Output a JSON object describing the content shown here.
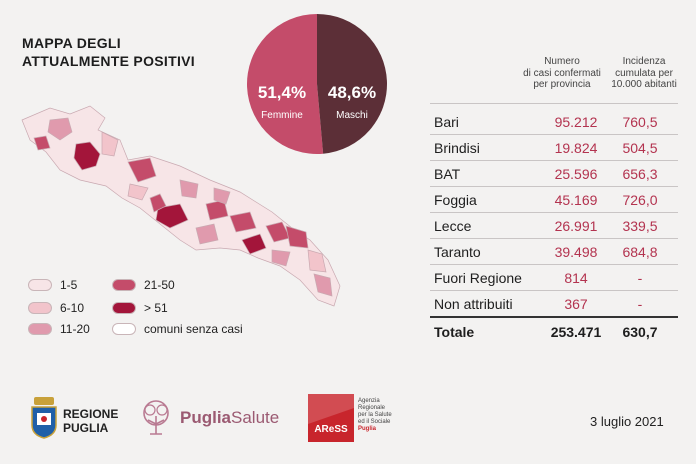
{
  "title": {
    "line1": "MAPPA DEGLI",
    "line2": "ATTUALMENTE POSITIVI"
  },
  "gender": {
    "female_pct": "51,4%",
    "female_label": "Femmine",
    "female_value": 51.4,
    "male_pct": "48,6%",
    "male_label": "Maschi",
    "male_value": 48.6,
    "female_color": "#c44c6a",
    "male_color": "#5c2f37"
  },
  "legend": [
    {
      "label": "1-5",
      "color": "#f7e5e7"
    },
    {
      "label": "6-10",
      "color": "#f2c4cb"
    },
    {
      "label": "11-20",
      "color": "#e09aad"
    },
    {
      "label": "21-50",
      "color": "#c44c6a"
    },
    {
      "label": "> 51",
      "color": "#a3153a"
    },
    {
      "label": "comuni senza casi",
      "color": "#ffffff"
    }
  ],
  "table": {
    "col1_header": [
      "Numero",
      "di casi confermati",
      "per provincia"
    ],
    "col2_header": [
      "Incidenza",
      "cumulata per",
      "10.000 abitanti"
    ],
    "rows": [
      {
        "name": "Bari",
        "cases": "95.212",
        "incidence": "760,5"
      },
      {
        "name": "Brindisi",
        "cases": "19.824",
        "incidence": "504,5"
      },
      {
        "name": "BAT",
        "cases": "25.596",
        "incidence": "656,3"
      },
      {
        "name": "Foggia",
        "cases": "45.169",
        "incidence": "726,0"
      },
      {
        "name": "Lecce",
        "cases": "26.991",
        "incidence": "339,5"
      },
      {
        "name": "Taranto",
        "cases": "39.498",
        "incidence": "684,8"
      },
      {
        "name": "Fuori Regione",
        "cases": "814",
        "incidence": "-"
      },
      {
        "name": "Non attribuiti",
        "cases": "367",
        "incidence": "-"
      }
    ],
    "total": {
      "name": "Totale",
      "cases": "253.471",
      "incidence": "630,7"
    }
  },
  "footer": {
    "regione_line1": "REGIONE",
    "regione_line2": "PUGLIA",
    "puglia_salute_a": "Puglia",
    "puglia_salute_b": "Salute",
    "aress_logo": "AReSS",
    "aress_desc": [
      "Agenzia",
      "Regionale",
      "per la Salute",
      "ed il Sociale",
      "Puglia"
    ],
    "date": "3 luglio 2021"
  }
}
